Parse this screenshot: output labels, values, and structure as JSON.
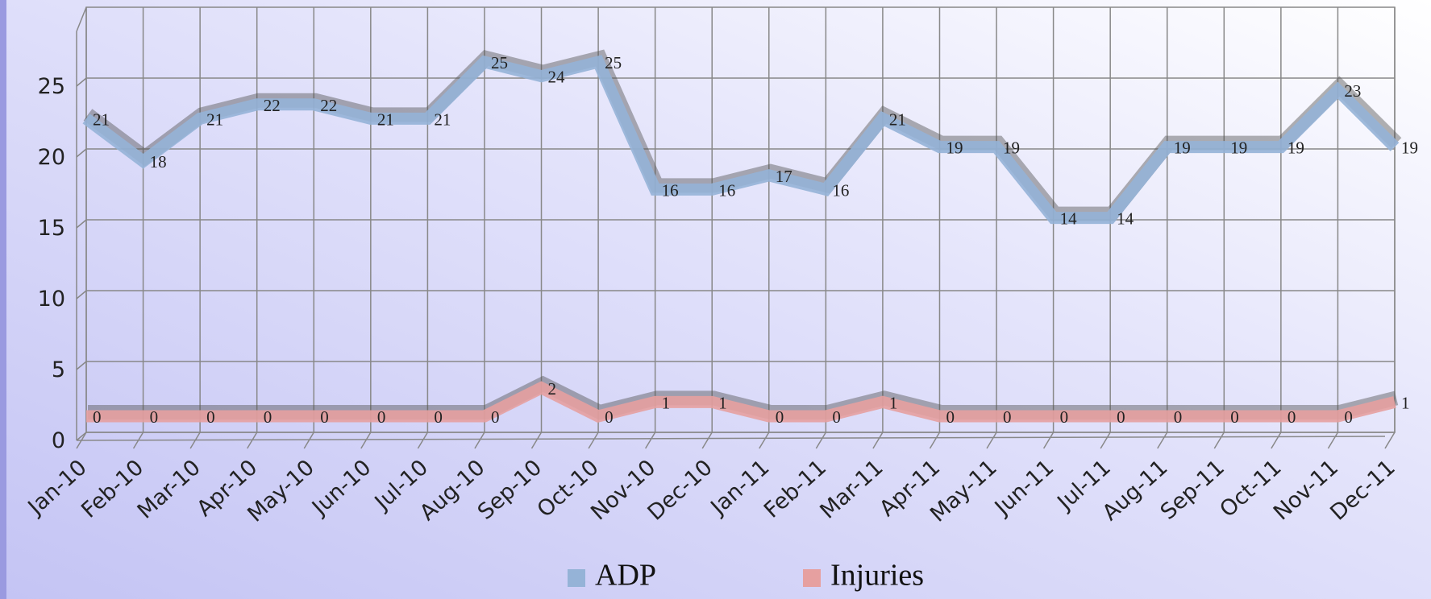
{
  "chart_data": {
    "type": "line",
    "categories": [
      "Jan-10",
      "Feb-10",
      "Mar-10",
      "Apr-10",
      "May-10",
      "Jun-10",
      "Jul-10",
      "Aug-10",
      "Sep-10",
      "Oct-10",
      "Nov-10",
      "Dec-10",
      "Jan-11",
      "Feb-11",
      "Mar-11",
      "Apr-11",
      "May-11",
      "Jun-11",
      "Jul-11",
      "Aug-11",
      "Sep-11",
      "Oct-11",
      "Nov-11",
      "Dec-11"
    ],
    "series": [
      {
        "name": "ADP",
        "color": "#95b3d7",
        "values": [
          21,
          18,
          21,
          22,
          22,
          21,
          21,
          25,
          24,
          25,
          16,
          16,
          17,
          16,
          21,
          19,
          19,
          14,
          14,
          19,
          19,
          19,
          23,
          19
        ]
      },
      {
        "name": "Injuries",
        "color": "#e6a0a0",
        "values": [
          0,
          0,
          0,
          0,
          0,
          0,
          0,
          0,
          2,
          0,
          1,
          1,
          0,
          0,
          1,
          0,
          0,
          0,
          0,
          0,
          0,
          0,
          0,
          1
        ]
      }
    ],
    "ylim": [
      0,
      30
    ],
    "yticks": [
      0,
      5,
      10,
      15,
      20,
      25
    ],
    "grid": true,
    "legend": "bottom"
  }
}
